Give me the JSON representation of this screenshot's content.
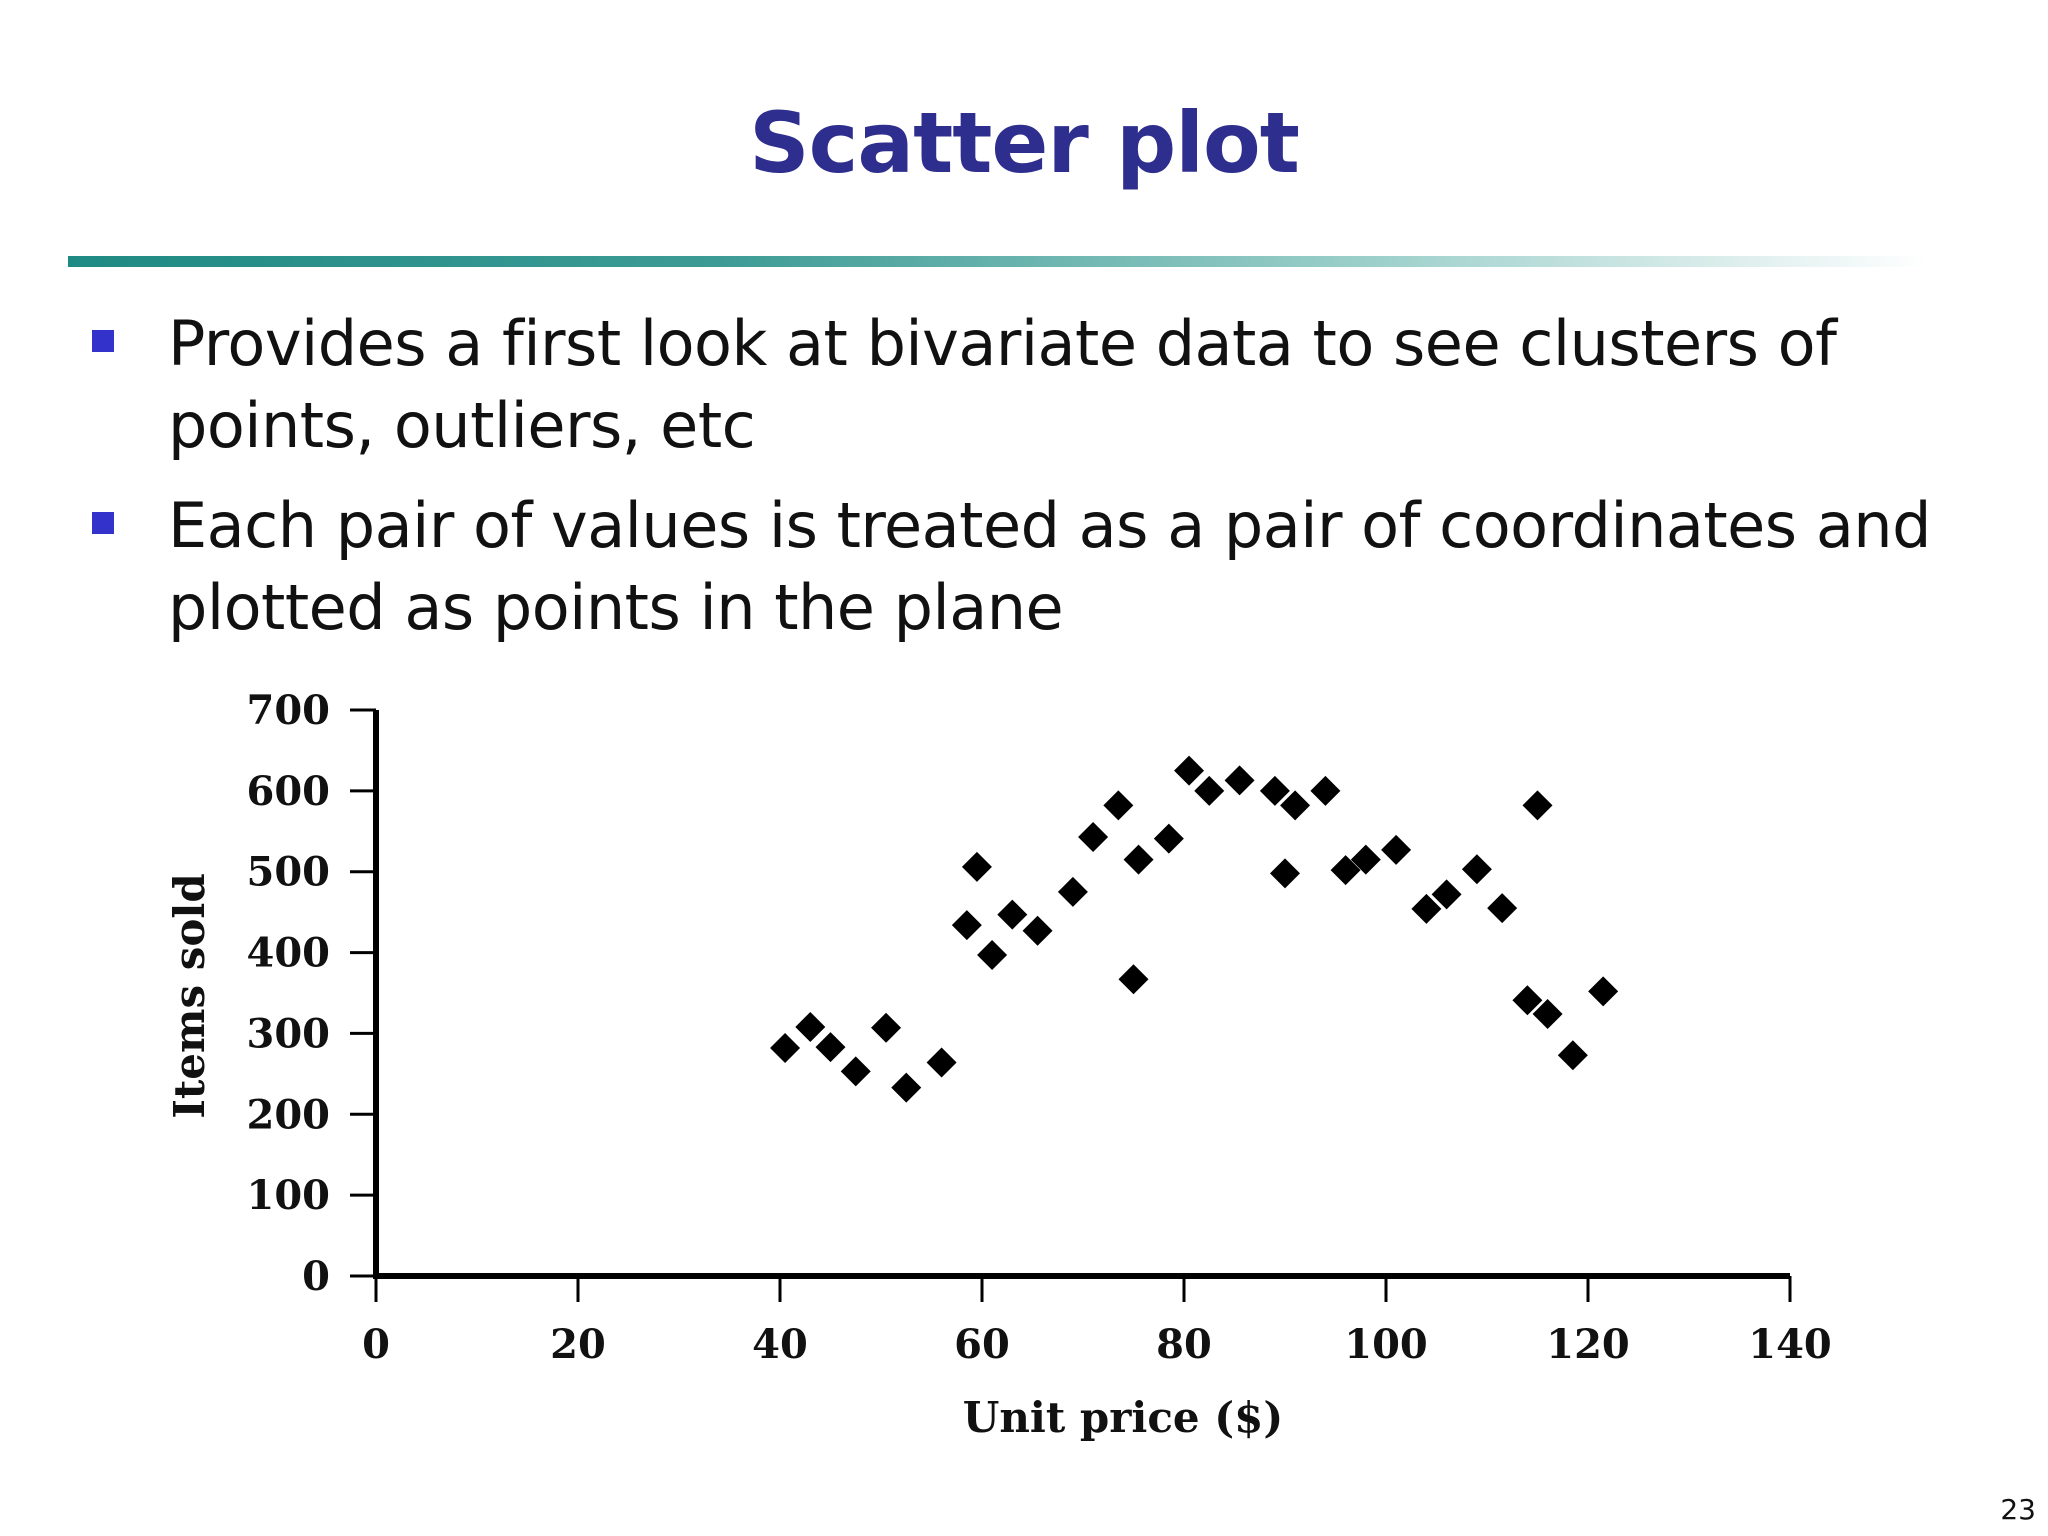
{
  "slide": {
    "title": "Scatter plot",
    "page_number": "23",
    "bullets": [
      "Provides a first look at bivariate data to see clusters of points, outliers, etc",
      "Each pair of values is treated as a pair of coordinates and plotted as points in the plane"
    ]
  },
  "colors": {
    "title": "#2e2e8e",
    "bullet_marker": "#3333cc",
    "rule_start": "#1f8a83",
    "marker": "#000000"
  },
  "chart_data": {
    "type": "scatter",
    "title": "",
    "xlabel": "Unit price ($)",
    "ylabel": "Items sold",
    "xlim": [
      0,
      140
    ],
    "ylim": [
      0,
      700
    ],
    "xticks": [
      0,
      20,
      40,
      60,
      80,
      100,
      120,
      140
    ],
    "yticks": [
      0,
      100,
      200,
      300,
      400,
      500,
      600,
      700
    ],
    "marker": "diamond",
    "grid": false,
    "points": [
      [
        40.5,
        282
      ],
      [
        43,
        308
      ],
      [
        45,
        283
      ],
      [
        47.5,
        253
      ],
      [
        50.5,
        307
      ],
      [
        52.5,
        233
      ],
      [
        56,
        264
      ],
      [
        58.5,
        434
      ],
      [
        59.5,
        506
      ],
      [
        61,
        397
      ],
      [
        63,
        447
      ],
      [
        65.5,
        427
      ],
      [
        69,
        475
      ],
      [
        71,
        543
      ],
      [
        73.5,
        582
      ],
      [
        75,
        367
      ],
      [
        75.5,
        515
      ],
      [
        78.5,
        541
      ],
      [
        80.5,
        625
      ],
      [
        82.5,
        600
      ],
      [
        85.5,
        613
      ],
      [
        89,
        600
      ],
      [
        90,
        498
      ],
      [
        91,
        582
      ],
      [
        94,
        600
      ],
      [
        96,
        502
      ],
      [
        98,
        515
      ],
      [
        101,
        527
      ],
      [
        104,
        454
      ],
      [
        106,
        472
      ],
      [
        109,
        503
      ],
      [
        111.5,
        455
      ],
      [
        114,
        341
      ],
      [
        115,
        582
      ],
      [
        116,
        324
      ],
      [
        118.5,
        273
      ],
      [
        121.5,
        352
      ]
    ]
  }
}
